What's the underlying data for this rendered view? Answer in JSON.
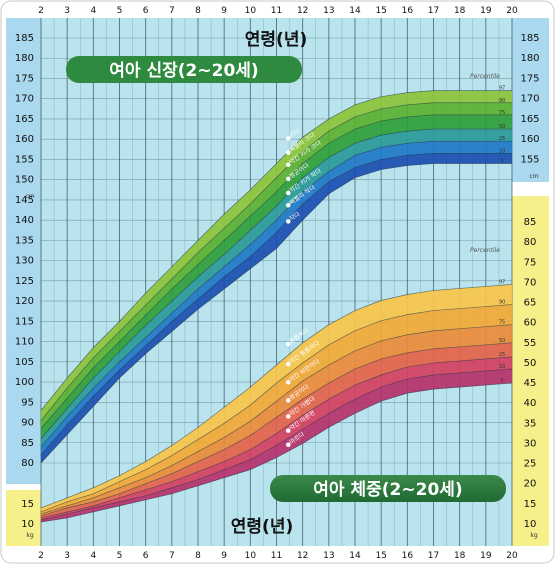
{
  "chart_data": [
    {
      "type": "area",
      "title": "여아 신장(2~20세)",
      "xlabel": "연령(년)",
      "ylabel": "cm",
      "xlim": [
        2,
        20
      ],
      "ylim": [
        75,
        190
      ],
      "y_ticks": [
        80,
        85,
        90,
        95,
        100,
        105,
        110,
        115,
        120,
        125,
        130,
        135,
        140,
        145,
        150,
        155,
        160,
        165,
        170,
        175,
        180,
        185
      ],
      "x_ticks": [
        2,
        3,
        4,
        5,
        6,
        7,
        8,
        9,
        10,
        11,
        12,
        13,
        14,
        15,
        16,
        17,
        18,
        19,
        20
      ],
      "legend_label": "Percentile",
      "x": [
        2,
        3,
        4,
        5,
        6,
        7,
        8,
        9,
        10,
        11,
        12,
        13,
        14,
        15,
        16,
        17,
        18,
        19,
        20
      ],
      "series": [
        {
          "name": "3",
          "values": [
            80,
            87,
            94,
            101,
            107,
            112.5,
            118,
            123,
            128,
            133,
            140,
            146.5,
            150.5,
            152.5,
            153.5,
            154,
            154,
            154,
            154
          ]
        },
        {
          "name": "10",
          "values": [
            82,
            89.5,
            96.5,
            103,
            109,
            115,
            120.5,
            126,
            131,
            137,
            144,
            149.5,
            153,
            155,
            156,
            156.5,
            156.5,
            156.5,
            156.5
          ]
        },
        {
          "name": "25",
          "values": [
            84,
            91.5,
            98.5,
            105,
            111,
            117,
            123,
            128.5,
            134,
            140,
            147,
            152,
            156,
            158,
            159,
            159.5,
            159.5,
            159.5,
            159.5
          ]
        },
        {
          "name": "50",
          "values": [
            86,
            93.5,
            101,
            107.5,
            114,
            120,
            126,
            131.5,
            137.5,
            143.5,
            150.5,
            155.5,
            159,
            161,
            162,
            162.5,
            162.5,
            162.5,
            162.5
          ]
        },
        {
          "name": "75",
          "values": [
            88.5,
            96,
            103.5,
            110,
            116.5,
            123,
            129,
            135,
            141,
            147,
            154,
            159,
            162.5,
            164.5,
            165.5,
            166,
            166,
            166,
            166
          ]
        },
        {
          "name": "90",
          "values": [
            90.5,
            98.5,
            106,
            112.5,
            119,
            125.5,
            132,
            138,
            144,
            150.5,
            157,
            162,
            165.5,
            167.5,
            168.5,
            169,
            169,
            169,
            169
          ]
        },
        {
          "name": "97",
          "values": [
            93,
            101,
            108.5,
            115,
            122,
            128.5,
            135,
            141.5,
            147.5,
            154,
            160.5,
            165,
            168.5,
            170.5,
            171.5,
            172,
            172,
            172,
            172
          ]
        }
      ],
      "annotations": [
        "●키다",
        "●뼈빨리 크다",
        "●약간 키가 크다",
        "●평균이다",
        "●약간 키가 작다",
        "●뼈빨리 작다",
        "●작다"
      ],
      "colors": [
        "#1a4fb0",
        "#1f78c8",
        "#2a9a9a",
        "#2f9e3a",
        "#5ab130",
        "#8cc43a",
        "#b8dd5c"
      ]
    },
    {
      "type": "area",
      "title": "여아 체중(2~20세)",
      "xlabel": "연령(년)",
      "ylabel": "kg",
      "xlim": [
        2,
        20
      ],
      "ylim": [
        8,
        90
      ],
      "y_ticks": [
        10,
        15,
        20,
        25,
        30,
        35,
        40,
        45,
        50,
        55,
        60,
        65,
        70,
        75,
        80,
        85
      ],
      "legend_label": "Percentile",
      "x": [
        2,
        3,
        4,
        5,
        6,
        7,
        8,
        9,
        10,
        11,
        12,
        13,
        14,
        15,
        16,
        17,
        18,
        19,
        20
      ],
      "series": [
        {
          "name": "3",
          "values": [
            10.5,
            11.5,
            13,
            14.5,
            16,
            17.5,
            19.5,
            21.5,
            23.5,
            26.5,
            30,
            34,
            37.5,
            40.5,
            42.5,
            43.5,
            44,
            44.5,
            45
          ]
        },
        {
          "name": "10",
          "values": [
            11,
            12.5,
            14,
            15.5,
            17,
            19,
            21,
            23.5,
            26,
            29.5,
            33.5,
            37.5,
            41,
            44,
            46,
            47,
            47.5,
            48,
            48.5
          ]
        },
        {
          "name": "25",
          "values": [
            11.5,
            13,
            14.5,
            16.5,
            18.5,
            20.5,
            23,
            25.5,
            28.5,
            32.5,
            37,
            41,
            44.5,
            47,
            49,
            50,
            50.5,
            51,
            51.5
          ]
        },
        {
          "name": "50",
          "values": [
            12,
            14,
            15.5,
            17.5,
            20,
            22.5,
            25.5,
            28.5,
            32,
            36.5,
            41,
            45,
            48.5,
            51,
            52.5,
            53.5,
            54,
            54.5,
            55
          ]
        },
        {
          "name": "75",
          "values": [
            12.5,
            14.5,
            16.5,
            19,
            21.5,
            24.5,
            28,
            31.5,
            35.5,
            40.5,
            45.5,
            49.5,
            53,
            55.5,
            57,
            58,
            58.5,
            59,
            59.5
          ]
        },
        {
          "name": "90",
          "values": [
            13,
            15.5,
            17.5,
            20.5,
            23.5,
            27,
            31,
            35,
            39.5,
            45,
            50,
            54.5,
            58,
            60.5,
            62,
            63,
            63.5,
            64,
            64.5
          ]
        },
        {
          "name": "97",
          "values": [
            14,
            16.5,
            19,
            22,
            25.5,
            29.5,
            34,
            39,
            44,
            49.5,
            55,
            59.5,
            63,
            65.5,
            67,
            68,
            68.5,
            69,
            69.5
          ]
        }
      ],
      "annotations": [
        "●통통하다",
        "●약간 통통하다",
        "●약간 비만이다",
        "●평균이다",
        "●약간 가볍다",
        "●약간 마른편",
        "●마르다"
      ],
      "colors": [
        "#b5316b",
        "#d43f5f",
        "#e4634a",
        "#ec8b3a",
        "#f2a934",
        "#f7c64a",
        "#fbe07e"
      ]
    }
  ]
}
